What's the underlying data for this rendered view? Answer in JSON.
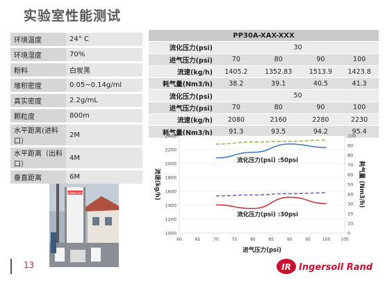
{
  "slide": {
    "title": "实验室性能测试",
    "page_number": "13"
  },
  "spec_table": [
    {
      "key": "环境温度",
      "value": "24° C"
    },
    {
      "key": "环境湿度",
      "value": "70%"
    },
    {
      "key": "粉料",
      "value": "白炭黑"
    },
    {
      "key": "堆积密度",
      "value": "0.05~0.14g/ml"
    },
    {
      "key": "真实密度",
      "value": "2.2g/mL"
    },
    {
      "key": "颗粒度",
      "value": "800m"
    },
    {
      "key": "水平距离(进料口）",
      "value": "2M"
    },
    {
      "key": "水平距离（出料口）",
      "value": "4M"
    },
    {
      "key": "垂直距离",
      "value": "6M"
    }
  ],
  "data_table": {
    "model": "PP30A-XAX-XXX",
    "groups": [
      {
        "fluid_label": "流化压力(psi)",
        "fluid_value": "30",
        "inlet_label": "进气压力(psi)",
        "inlet": [
          "70",
          "80",
          "90",
          "100"
        ],
        "flow_label": "流速(kg/h)",
        "flow": [
          "1405.2",
          "1352.83",
          "1513.9",
          "1423.8"
        ],
        "air_label": "耗气量(Nm3/h)",
        "air": [
          "38.2",
          "39.1",
          "40.5",
          "41.3"
        ]
      },
      {
        "fluid_label": "流化压力(psi)",
        "fluid_value": "50",
        "inlet_label": "进气压力(psi)",
        "inlet": [
          "70",
          "80",
          "90",
          "100"
        ],
        "flow_label": "流速(kg/h)",
        "flow": [
          "2080",
          "2160",
          "2280",
          "2230"
        ],
        "air_label": "耗气量(Nm3/h)",
        "air": [
          "91.3",
          "93.5",
          "94.2",
          "95.4"
        ]
      }
    ]
  },
  "chart_data": {
    "type": "line",
    "xlabel": "进气压力(psi)",
    "ylabel": "流速(kg/h)",
    "y2label": "耗气量 (Nm3/h)",
    "xlim": [
      60,
      105
    ],
    "xticks": [
      "60",
      "65",
      "70",
      "75",
      "80",
      "85",
      "90",
      "95",
      "100",
      "105"
    ],
    "ylim": [
      1000,
      2400
    ],
    "yticks": [
      "1000",
      "1200",
      "1400",
      "1600",
      "1800",
      "2000",
      "2200",
      "2400"
    ],
    "y2lim": [
      0,
      100
    ],
    "y2ticks": [
      "0",
      "10",
      "20",
      "30",
      "40",
      "50",
      "60",
      "70",
      "80",
      "90",
      "100"
    ],
    "annotations": [
      "流化压力(psi) :50psi",
      "流化压力(psi) :30psi"
    ],
    "series": [
      {
        "axis": "left",
        "color": "#3a78c0",
        "dash": false,
        "x": [
          70,
          80,
          90,
          100
        ],
        "values": [
          2080,
          2160,
          2280,
          2230
        ]
      },
      {
        "axis": "right",
        "color": "#8fbf4a",
        "dash": true,
        "x": [
          70,
          80,
          90,
          100
        ],
        "values": [
          91.3,
          93.5,
          94.2,
          95.4
        ]
      },
      {
        "axis": "left",
        "color": "#c0393b",
        "dash": false,
        "x": [
          70,
          80,
          90,
          100
        ],
        "values": [
          1405.2,
          1352.83,
          1513.9,
          1423.8
        ]
      },
      {
        "axis": "right",
        "color": "#7a5cc0",
        "dash": true,
        "x": [
          70,
          80,
          90,
          100
        ],
        "values": [
          38.2,
          39.1,
          40.5,
          41.3
        ]
      }
    ],
    "grid": true
  },
  "photo": {
    "sign_text": "管道输送测试"
  },
  "logo": {
    "text": "Ingersoll Rand",
    "mark_color": "#c8102e"
  }
}
